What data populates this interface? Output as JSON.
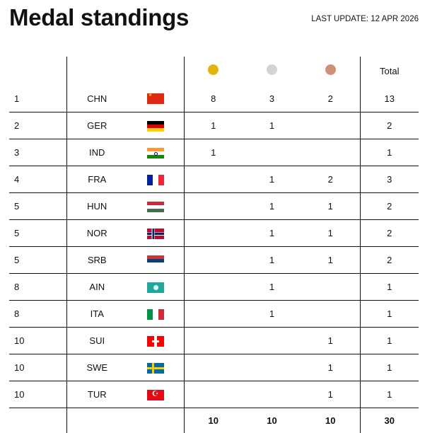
{
  "title": "Medal standings",
  "last_update": "LAST UPDATE: 12 APR 2026",
  "colors": {
    "gold": "#e2b30f",
    "silver": "#d3d3d3",
    "bronze": "#cf907a"
  },
  "header": {
    "total": "Total"
  },
  "rows": [
    {
      "rank": "1",
      "code": "CHN",
      "flag": "f-chn",
      "gold": "8",
      "silver": "3",
      "bronze": "2",
      "total": "13"
    },
    {
      "rank": "2",
      "code": "GER",
      "flag": "f-ger",
      "gold": "1",
      "silver": "1",
      "bronze": "",
      "total": "2"
    },
    {
      "rank": "3",
      "code": "IND",
      "flag": "f-ind",
      "gold": "1",
      "silver": "",
      "bronze": "",
      "total": "1"
    },
    {
      "rank": "4",
      "code": "FRA",
      "flag": "f-fra",
      "gold": "",
      "silver": "1",
      "bronze": "2",
      "total": "3"
    },
    {
      "rank": "5",
      "code": "HUN",
      "flag": "f-hun",
      "gold": "",
      "silver": "1",
      "bronze": "1",
      "total": "2"
    },
    {
      "rank": "5",
      "code": "NOR",
      "flag": "f-nor",
      "gold": "",
      "silver": "1",
      "bronze": "1",
      "total": "2"
    },
    {
      "rank": "5",
      "code": "SRB",
      "flag": "f-srb",
      "gold": "",
      "silver": "1",
      "bronze": "1",
      "total": "2"
    },
    {
      "rank": "8",
      "code": "AIN",
      "flag": "f-ain",
      "gold": "",
      "silver": "1",
      "bronze": "",
      "total": "1"
    },
    {
      "rank": "8",
      "code": "ITA",
      "flag": "f-ita",
      "gold": "",
      "silver": "1",
      "bronze": "",
      "total": "1"
    },
    {
      "rank": "10",
      "code": "SUI",
      "flag": "f-sui",
      "gold": "",
      "silver": "",
      "bronze": "1",
      "total": "1"
    },
    {
      "rank": "10",
      "code": "SWE",
      "flag": "f-swe",
      "gold": "",
      "silver": "",
      "bronze": "1",
      "total": "1"
    },
    {
      "rank": "10",
      "code": "TUR",
      "flag": "f-tur",
      "gold": "",
      "silver": "",
      "bronze": "1",
      "total": "1"
    }
  ],
  "totals": {
    "gold": "10",
    "silver": "10",
    "bronze": "10",
    "total": "30"
  }
}
